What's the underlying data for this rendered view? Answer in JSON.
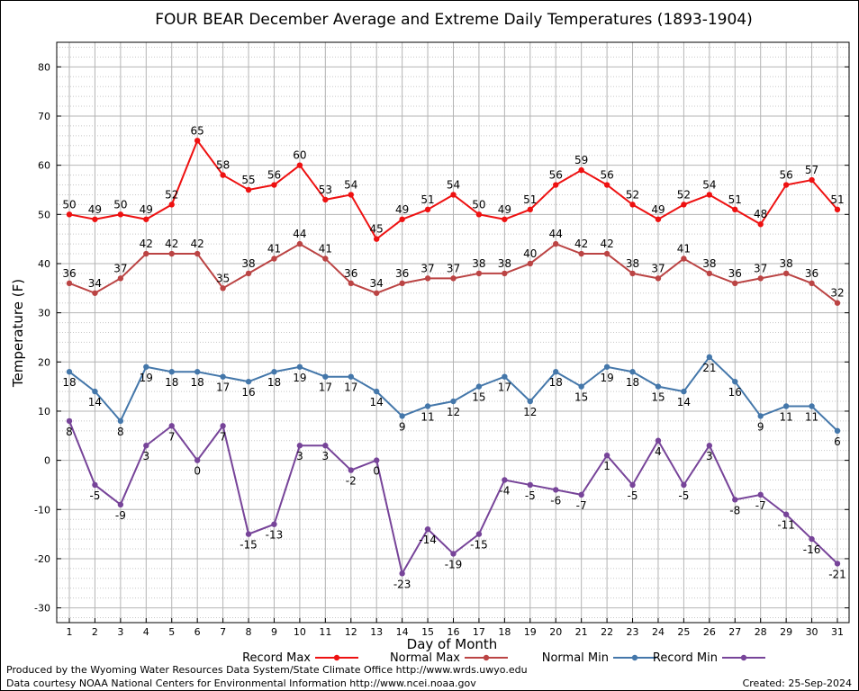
{
  "chart_data": {
    "type": "line",
    "title": "FOUR BEAR December Average and Extreme Daily Temperatures (1893-1904)",
    "xlabel": "Day of Month",
    "ylabel": "Temperature (F)",
    "ylim": [
      -33,
      85
    ],
    "yticks": [
      -30,
      -20,
      -10,
      0,
      10,
      20,
      30,
      40,
      50,
      60,
      70,
      80
    ],
    "x": [
      1,
      2,
      3,
      4,
      5,
      6,
      7,
      8,
      9,
      10,
      11,
      12,
      13,
      14,
      15,
      16,
      17,
      18,
      19,
      20,
      21,
      22,
      23,
      24,
      25,
      26,
      27,
      28,
      29,
      30,
      31
    ],
    "grid": true,
    "legend_position": "bottom",
    "series": [
      {
        "name": "Record Max",
        "color": "#ee1111",
        "label_pos": "above",
        "values": [
          50,
          49,
          50,
          49,
          52,
          65,
          58,
          55,
          56,
          60,
          53,
          54,
          45,
          49,
          51,
          54,
          50,
          49,
          51,
          56,
          59,
          56,
          52,
          49,
          52,
          54,
          51,
          48,
          56,
          57,
          51
        ]
      },
      {
        "name": "Normal Max",
        "color": "#bb4444",
        "label_pos": "above",
        "values": [
          36,
          34,
          37,
          42,
          42,
          42,
          35,
          38,
          41,
          44,
          41,
          36,
          34,
          36,
          37,
          37,
          38,
          38,
          40,
          44,
          42,
          42,
          38,
          37,
          41,
          38,
          36,
          37,
          38,
          36,
          32
        ]
      },
      {
        "name": "Normal Min",
        "color": "#4477aa",
        "label_pos": "below",
        "values": [
          18,
          14,
          8,
          19,
          18,
          18,
          17,
          16,
          18,
          19,
          17,
          17,
          14,
          9,
          11,
          12,
          15,
          17,
          12,
          18,
          15,
          19,
          18,
          15,
          14,
          21,
          16,
          9,
          11,
          11,
          6
        ]
      },
      {
        "name": "Record Min",
        "color": "#774499",
        "label_pos": "below",
        "values": [
          8,
          -5,
          -9,
          3,
          7,
          0,
          7,
          -15,
          -13,
          3,
          3,
          -2,
          0,
          -23,
          -14,
          -19,
          -15,
          -4,
          -5,
          -6,
          -7,
          1,
          -5,
          4,
          -5,
          3,
          -8,
          -7,
          -11,
          -16,
          -21
        ]
      }
    ]
  },
  "footer": {
    "line1": "Produced by the Wyoming Water Resources Data System/State Climate Office http://www.wrds.uwyo.edu",
    "line2": "Data courtesy NOAA National Centers for Environmental Information http://www.ncei.noaa.gov",
    "created": "Created:  25-Sep-2024"
  }
}
